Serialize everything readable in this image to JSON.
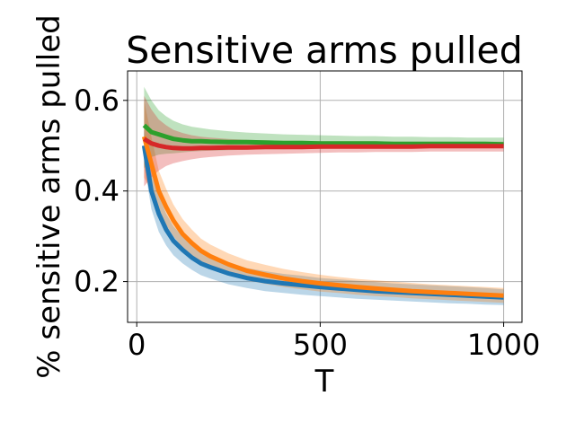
{
  "chart_data": {
    "type": "line",
    "title": "Sensitive arms pulled",
    "xlabel": "T",
    "ylabel": "% sensitive arms pulled",
    "xlim": [
      -25,
      1050
    ],
    "ylim": [
      0.11,
      0.665
    ],
    "xticks": [
      0,
      500,
      1000
    ],
    "xtick_labels": [
      "0",
      "500",
      "1000"
    ],
    "yticks": [
      0.2,
      0.4,
      0.6
    ],
    "ytick_labels": [
      "0.2",
      "0.4",
      "0.6"
    ],
    "grid": true,
    "x": [
      20,
      40,
      60,
      80,
      100,
      125,
      150,
      175,
      200,
      250,
      300,
      350,
      400,
      450,
      500,
      550,
      600,
      650,
      700,
      750,
      800,
      850,
      900,
      950,
      1000
    ],
    "series": [
      {
        "color": "#1f77b4",
        "values": [
          0.5,
          0.4,
          0.35,
          0.315,
          0.29,
          0.27,
          0.253,
          0.24,
          0.232,
          0.218,
          0.208,
          0.201,
          0.196,
          0.192,
          0.188,
          0.185,
          0.182,
          0.179,
          0.177,
          0.175,
          0.173,
          0.171,
          0.169,
          0.167,
          0.165
        ],
        "lower": [
          0.46,
          0.36,
          0.31,
          0.28,
          0.258,
          0.24,
          0.226,
          0.214,
          0.207,
          0.194,
          0.186,
          0.179,
          0.175,
          0.171,
          0.168,
          0.165,
          0.162,
          0.16,
          0.158,
          0.156,
          0.154,
          0.152,
          0.151,
          0.149,
          0.148
        ],
        "upper": [
          0.535,
          0.44,
          0.39,
          0.35,
          0.322,
          0.3,
          0.28,
          0.266,
          0.257,
          0.242,
          0.23,
          0.223,
          0.217,
          0.213,
          0.208,
          0.205,
          0.202,
          0.199,
          0.196,
          0.194,
          0.192,
          0.19,
          0.188,
          0.186,
          0.183
        ]
      },
      {
        "color": "#ff7f0e",
        "values": [
          0.52,
          0.46,
          0.4,
          0.365,
          0.335,
          0.305,
          0.285,
          0.268,
          0.256,
          0.238,
          0.224,
          0.215,
          0.207,
          0.201,
          0.196,
          0.192,
          0.188,
          0.185,
          0.182,
          0.179,
          0.177,
          0.175,
          0.173,
          0.171,
          0.169
        ],
        "lower": [
          0.43,
          0.4,
          0.355,
          0.325,
          0.3,
          0.275,
          0.257,
          0.242,
          0.232,
          0.216,
          0.203,
          0.195,
          0.188,
          0.183,
          0.178,
          0.175,
          0.171,
          0.168,
          0.166,
          0.163,
          0.161,
          0.159,
          0.157,
          0.155,
          0.153
        ],
        "upper": [
          0.6,
          0.52,
          0.445,
          0.405,
          0.37,
          0.338,
          0.315,
          0.295,
          0.282,
          0.262,
          0.247,
          0.237,
          0.228,
          0.221,
          0.215,
          0.21,
          0.206,
          0.203,
          0.2,
          0.197,
          0.194,
          0.192,
          0.19,
          0.188,
          0.186
        ]
      },
      {
        "color": "#2ca02c",
        "values": [
          0.545,
          0.53,
          0.525,
          0.52,
          0.515,
          0.512,
          0.51,
          0.51,
          0.509,
          0.508,
          0.508,
          0.507,
          0.506,
          0.506,
          0.505,
          0.505,
          0.505,
          0.505,
          0.504,
          0.504,
          0.504,
          0.504,
          0.504,
          0.504,
          0.503
        ],
        "lower": [
          0.45,
          0.475,
          0.48,
          0.482,
          0.483,
          0.485,
          0.487,
          0.488,
          0.489,
          0.49,
          0.491,
          0.492,
          0.492,
          0.493,
          0.493,
          0.494,
          0.494,
          0.494,
          0.494,
          0.495,
          0.495,
          0.495,
          0.495,
          0.495,
          0.495
        ],
        "upper": [
          0.63,
          0.6,
          0.578,
          0.565,
          0.555,
          0.547,
          0.542,
          0.539,
          0.536,
          0.532,
          0.529,
          0.527,
          0.525,
          0.524,
          0.523,
          0.522,
          0.521,
          0.521,
          0.52,
          0.52,
          0.519,
          0.519,
          0.518,
          0.518,
          0.518
        ]
      },
      {
        "color": "#d62728",
        "values": [
          0.515,
          0.505,
          0.5,
          0.497,
          0.495,
          0.494,
          0.494,
          0.495,
          0.495,
          0.496,
          0.496,
          0.497,
          0.497,
          0.497,
          0.498,
          0.498,
          0.498,
          0.498,
          0.498,
          0.498,
          0.499,
          0.499,
          0.499,
          0.499,
          0.499
        ],
        "lower": [
          0.41,
          0.43,
          0.445,
          0.455,
          0.461,
          0.466,
          0.47,
          0.473,
          0.475,
          0.478,
          0.48,
          0.481,
          0.482,
          0.483,
          0.484,
          0.485,
          0.485,
          0.486,
          0.486,
          0.486,
          0.487,
          0.487,
          0.487,
          0.487,
          0.487
        ],
        "upper": [
          0.61,
          0.58,
          0.558,
          0.545,
          0.535,
          0.528,
          0.523,
          0.52,
          0.518,
          0.515,
          0.513,
          0.512,
          0.511,
          0.511,
          0.51,
          0.51,
          0.51,
          0.51,
          0.509,
          0.509,
          0.509,
          0.509,
          0.509,
          0.509,
          0.509
        ]
      }
    ]
  }
}
